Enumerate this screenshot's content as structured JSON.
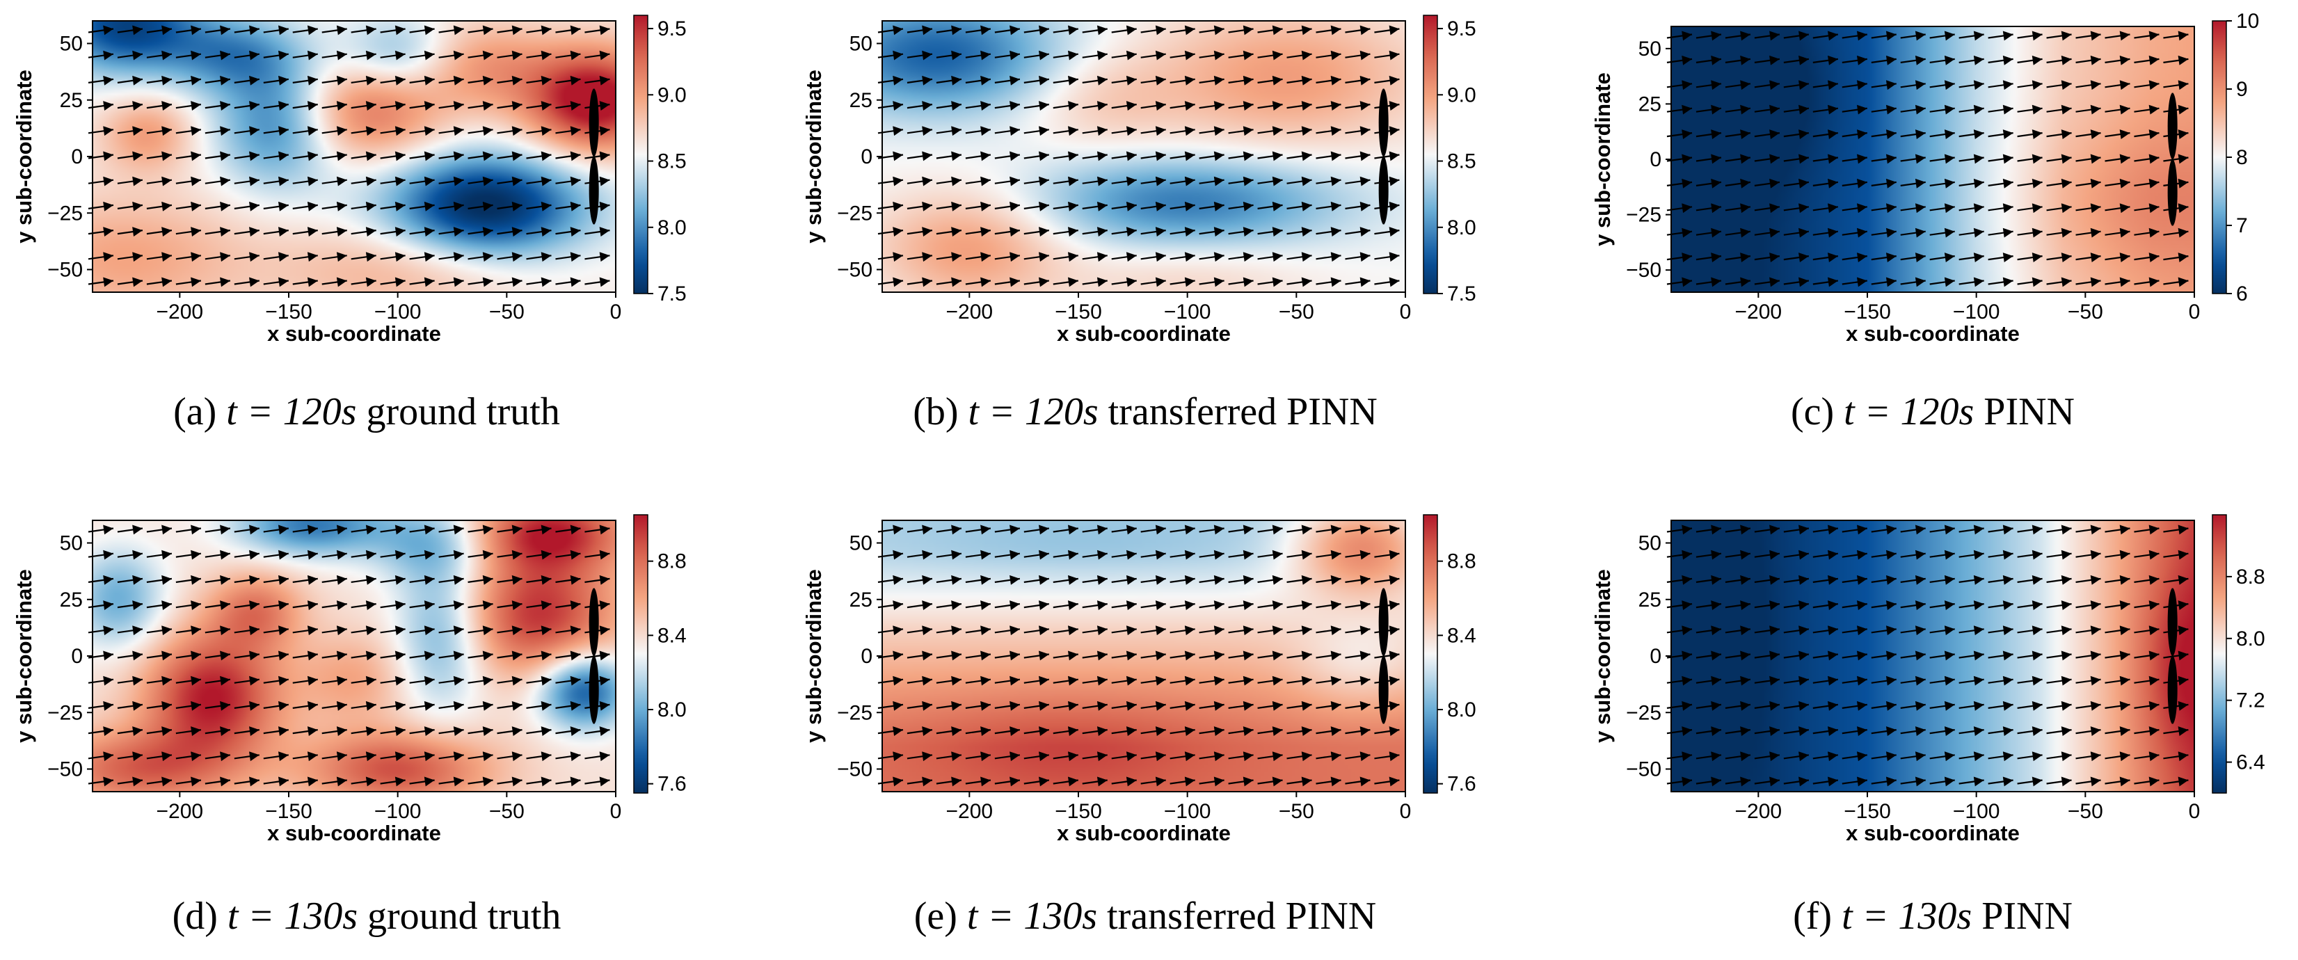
{
  "colors": {
    "low": "#08519c",
    "mid": "#f7f7f7",
    "high": "#b2182b",
    "arrow": "#000000",
    "turbine": "#000000"
  },
  "common": {
    "xlabel": "x sub-coordinate",
    "ylabel": "y sub-coordinate"
  },
  "chart_data": [
    {
      "type": "heatmap",
      "id": "a",
      "title": "(a) t = 120s ground truth",
      "caption": {
        "prefix": "(a) ",
        "math": "t = 120s",
        "suffix": " ground truth"
      },
      "xlim": [
        -240,
        0
      ],
      "ylim": [
        -60,
        60
      ],
      "xticks": [
        -200,
        -150,
        -100,
        -50,
        0
      ],
      "yticks": [
        -50,
        -25,
        0,
        25,
        50
      ],
      "colorbar": {
        "min": 7.5,
        "max": 9.6,
        "ticks": [
          "7.5",
          "8.0",
          "8.5",
          "9.0",
          "9.5"
        ],
        "tick_values": [
          7.5,
          8.0,
          8.5,
          9.0,
          9.5
        ]
      },
      "field": {
        "base": 0.52,
        "blobs": [
          {
            "x": -225,
            "y": 58,
            "sx": 25,
            "sy": 15,
            "a": -0.45
          },
          {
            "x": -175,
            "y": 45,
            "sx": 22,
            "sy": 12,
            "a": -0.25
          },
          {
            "x": -155,
            "y": 15,
            "sx": 20,
            "sy": 20,
            "a": -0.32
          },
          {
            "x": -215,
            "y": 10,
            "sx": 15,
            "sy": 12,
            "a": 0.2
          },
          {
            "x": -225,
            "y": -45,
            "sx": 40,
            "sy": 20,
            "a": 0.18
          },
          {
            "x": -115,
            "y": 20,
            "sx": 25,
            "sy": 16,
            "a": 0.3
          },
          {
            "x": -60,
            "y": -22,
            "sx": 32,
            "sy": 16,
            "a": -0.55
          },
          {
            "x": -100,
            "y": 45,
            "sx": 18,
            "sy": 12,
            "a": -0.2
          },
          {
            "x": -10,
            "y": 25,
            "sx": 22,
            "sy": 16,
            "a": 0.55
          },
          {
            "x": -60,
            "y": 40,
            "sx": 22,
            "sy": 14,
            "a": 0.2
          },
          {
            "x": -100,
            "y": -50,
            "sx": 40,
            "sy": 15,
            "a": 0.15
          }
        ]
      }
    },
    {
      "type": "heatmap",
      "id": "b",
      "title": "(b) t = 120s transferred PINN",
      "caption": {
        "prefix": "(b) ",
        "math": "t = 120s",
        "suffix": " transferred PINN"
      },
      "xlim": [
        -240,
        0
      ],
      "ylim": [
        -60,
        60
      ],
      "xticks": [
        -200,
        -150,
        -100,
        -50,
        0
      ],
      "yticks": [
        -50,
        -25,
        0,
        25,
        50
      ],
      "colorbar": {
        "min": 7.5,
        "max": 9.6,
        "ticks": [
          "7.5",
          "8.0",
          "8.5",
          "9.0",
          "9.5"
        ],
        "tick_values": [
          7.5,
          8.0,
          8.5,
          9.0,
          9.5
        ]
      },
      "field": {
        "base": 0.5,
        "blobs": [
          {
            "x": -215,
            "y": 45,
            "sx": 40,
            "sy": 18,
            "a": -0.35
          },
          {
            "x": -100,
            "y": -20,
            "sx": 50,
            "sy": 14,
            "a": -0.3
          },
          {
            "x": -200,
            "y": -40,
            "sx": 30,
            "sy": 18,
            "a": 0.22
          },
          {
            "x": -55,
            "y": 35,
            "sx": 45,
            "sy": 22,
            "a": 0.22
          },
          {
            "x": -140,
            "y": 25,
            "sx": 25,
            "sy": 15,
            "a": 0.1
          },
          {
            "x": -100,
            "y": -55,
            "sx": 40,
            "sy": 12,
            "a": 0.08
          }
        ]
      }
    },
    {
      "type": "heatmap",
      "id": "c",
      "title": "(c) t = 120s PINN",
      "caption": {
        "prefix": "(c) ",
        "math": "t = 120s",
        "suffix": " PINN"
      },
      "xlim": [
        -240,
        0
      ],
      "ylim": [
        -60,
        60
      ],
      "xticks": [
        -200,
        -150,
        -100,
        -50,
        0
      ],
      "yticks": [
        -50,
        -25,
        0,
        25,
        50
      ],
      "colorbar": {
        "min": 6,
        "max": 10,
        "ticks": [
          "6",
          "7",
          "8",
          "9",
          "10"
        ],
        "tick_values": [
          6,
          7,
          8,
          9,
          10
        ]
      },
      "field": {
        "base": 0.18,
        "gx": [
          [
            -240,
            0.0
          ],
          [
            -200,
            0.0
          ],
          [
            -150,
            0.12
          ],
          [
            -100,
            0.42
          ],
          [
            -60,
            0.6
          ],
          [
            -20,
            0.68
          ],
          [
            0,
            0.7
          ]
        ],
        "blobs": [
          {
            "x": -220,
            "y": 30,
            "sx": 30,
            "sy": 25,
            "a": -0.15
          },
          {
            "x": -20,
            "y": -20,
            "sx": 40,
            "sy": 25,
            "a": 0.1
          }
        ]
      }
    },
    {
      "type": "heatmap",
      "id": "d",
      "title": "(d) t = 130s ground truth",
      "caption": {
        "prefix": "(d) ",
        "math": "t = 130s",
        "suffix": " ground truth"
      },
      "xlim": [
        -240,
        0
      ],
      "ylim": [
        -60,
        60
      ],
      "xticks": [
        -200,
        -150,
        -100,
        -50,
        0
      ],
      "yticks": [
        -50,
        -25,
        0,
        25,
        50
      ],
      "colorbar": {
        "min": 7.55,
        "max": 9.05,
        "ticks": [
          "7.6",
          "8.0",
          "8.4",
          "8.8"
        ],
        "tick_values": [
          7.6,
          8.0,
          8.4,
          8.8
        ]
      },
      "field": {
        "base": 0.55,
        "blobs": [
          {
            "x": -140,
            "y": 58,
            "sx": 25,
            "sy": 10,
            "a": -0.35
          },
          {
            "x": -228,
            "y": 25,
            "sx": 15,
            "sy": 16,
            "a": -0.25
          },
          {
            "x": -80,
            "y": 10,
            "sx": 15,
            "sy": 25,
            "a": -0.25
          },
          {
            "x": -85,
            "y": 50,
            "sx": 20,
            "sy": 12,
            "a": -0.2
          },
          {
            "x": -15,
            "y": -15,
            "sx": 15,
            "sy": 12,
            "a": -0.45
          },
          {
            "x": -185,
            "y": -18,
            "sx": 22,
            "sy": 20,
            "a": 0.45
          },
          {
            "x": -165,
            "y": 20,
            "sx": 15,
            "sy": 12,
            "a": 0.25
          },
          {
            "x": -35,
            "y": 18,
            "sx": 25,
            "sy": 20,
            "a": 0.4
          },
          {
            "x": -30,
            "y": 55,
            "sx": 25,
            "sy": 12,
            "a": 0.4
          },
          {
            "x": -100,
            "y": -50,
            "sx": 30,
            "sy": 12,
            "a": 0.35
          },
          {
            "x": -220,
            "y": -50,
            "sx": 30,
            "sy": 12,
            "a": 0.3
          },
          {
            "x": -120,
            "y": -10,
            "sx": 18,
            "sy": 14,
            "a": 0.15
          }
        ]
      }
    },
    {
      "type": "heatmap",
      "id": "e",
      "title": "(e) t = 130s transferred PINN",
      "caption": {
        "prefix": "(e) ",
        "math": "t = 130s",
        "suffix": " transferred PINN"
      },
      "xlim": [
        -240,
        0
      ],
      "ylim": [
        -60,
        60
      ],
      "xticks": [
        -200,
        -150,
        -100,
        -50,
        0
      ],
      "yticks": [
        -50,
        -25,
        0,
        25,
        50
      ],
      "colorbar": {
        "min": 7.55,
        "max": 9.05,
        "ticks": [
          "7.6",
          "8.0",
          "8.4",
          "8.8"
        ],
        "tick_values": [
          7.6,
          8.0,
          8.4,
          8.8
        ]
      },
      "field": {
        "base": 0.5,
        "gy": [
          [
            -60,
            0.82
          ],
          [
            -40,
            0.82
          ],
          [
            -15,
            0.72
          ],
          [
            10,
            0.6
          ],
          [
            30,
            0.48
          ],
          [
            45,
            0.42
          ],
          [
            60,
            0.4
          ]
        ],
        "blobs": [
          {
            "x": -155,
            "y": -40,
            "sx": 50,
            "sy": 18,
            "a": 0.1
          },
          {
            "x": -20,
            "y": 48,
            "sx": 22,
            "sy": 15,
            "a": 0.35
          },
          {
            "x": -20,
            "y": -5,
            "sx": 22,
            "sy": 15,
            "a": -0.12
          },
          {
            "x": -150,
            "y": 50,
            "sx": 60,
            "sy": 10,
            "a": -0.05
          }
        ]
      }
    },
    {
      "type": "heatmap",
      "id": "f",
      "title": "(f) t = 130s PINN",
      "caption": {
        "prefix": "(f) ",
        "math": "t = 130s",
        "suffix": " PINN"
      },
      "xlim": [
        -240,
        0
      ],
      "ylim": [
        -60,
        60
      ],
      "xticks": [
        -200,
        -150,
        -100,
        -50,
        0
      ],
      "yticks": [
        -50,
        -25,
        0,
        25,
        50
      ],
      "colorbar": {
        "min": 6.0,
        "max": 9.6,
        "ticks": [
          "6.4",
          "7.2",
          "8.0",
          "8.8"
        ],
        "tick_values": [
          6.4,
          7.2,
          8.0,
          8.8
        ]
      },
      "field": {
        "base": 0.2,
        "gx": [
          [
            -240,
            0.0
          ],
          [
            -200,
            0.02
          ],
          [
            -150,
            0.12
          ],
          [
            -100,
            0.32
          ],
          [
            -70,
            0.45
          ],
          [
            -30,
            0.72
          ],
          [
            0,
            0.92
          ]
        ],
        "blobs": [
          {
            "x": -8,
            "y": -5,
            "sx": 14,
            "sy": 30,
            "a": 0.12
          },
          {
            "x": -230,
            "y": 10,
            "sx": 20,
            "sy": 40,
            "a": -0.1
          }
        ]
      }
    }
  ]
}
